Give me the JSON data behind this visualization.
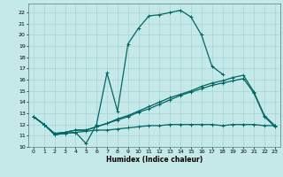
{
  "xlabel": "Humidex (Indice chaleur)",
  "xlim": [
    -0.5,
    23.5
  ],
  "ylim": [
    10.0,
    22.8
  ],
  "yticks": [
    10,
    11,
    12,
    13,
    14,
    15,
    16,
    17,
    18,
    19,
    20,
    21,
    22
  ],
  "xticks": [
    0,
    1,
    2,
    3,
    4,
    5,
    6,
    7,
    8,
    9,
    10,
    11,
    12,
    13,
    14,
    15,
    16,
    17,
    18,
    19,
    20,
    21,
    22,
    23
  ],
  "bg_color": "#c5e8e8",
  "line_color": "#006666",
  "grid_color": "#a8d4d4",
  "line1_x": [
    0,
    1,
    2,
    3,
    4,
    5,
    6,
    7,
    8,
    9,
    10,
    11,
    12,
    13,
    14,
    15,
    16,
    17,
    18
  ],
  "line1_y": [
    12.7,
    12.0,
    11.1,
    11.2,
    11.3,
    10.3,
    12.0,
    16.6,
    13.2,
    19.2,
    20.6,
    21.7,
    21.8,
    22.0,
    22.2,
    21.6,
    20.0,
    17.2,
    16.5
  ],
  "line2_x": [
    0,
    1,
    2,
    3,
    4,
    5,
    6,
    7,
    8,
    9,
    10,
    11,
    12,
    13,
    14,
    15,
    16,
    17,
    18,
    19,
    20,
    21,
    22,
    23
  ],
  "line2_y": [
    12.7,
    12.0,
    11.1,
    11.2,
    11.3,
    11.4,
    11.5,
    11.5,
    11.6,
    11.7,
    11.8,
    11.9,
    11.9,
    12.0,
    12.0,
    12.0,
    12.0,
    12.0,
    11.9,
    12.0,
    12.0,
    12.0,
    11.9,
    11.9
  ],
  "line3_x": [
    0,
    1,
    2,
    3,
    4,
    5,
    6,
    7,
    8,
    9,
    10,
    11,
    12,
    13,
    14,
    15,
    16,
    17,
    18,
    19,
    20,
    21,
    22,
    23
  ],
  "line3_y": [
    12.7,
    12.0,
    11.2,
    11.3,
    11.5,
    11.5,
    11.8,
    12.1,
    12.5,
    12.8,
    13.2,
    13.6,
    14.0,
    14.4,
    14.7,
    15.0,
    15.4,
    15.7,
    15.9,
    16.2,
    16.4,
    14.9,
    12.8,
    11.9
  ],
  "line4_x": [
    0,
    1,
    2,
    3,
    4,
    5,
    6,
    7,
    8,
    9,
    10,
    11,
    12,
    13,
    14,
    15,
    16,
    17,
    18,
    19,
    20,
    21,
    22,
    23
  ],
  "line4_y": [
    12.7,
    12.0,
    11.2,
    11.3,
    11.5,
    11.5,
    11.8,
    12.1,
    12.4,
    12.7,
    13.1,
    13.4,
    13.8,
    14.2,
    14.6,
    14.9,
    15.2,
    15.5,
    15.7,
    15.9,
    16.1,
    14.8,
    12.7,
    11.8
  ]
}
